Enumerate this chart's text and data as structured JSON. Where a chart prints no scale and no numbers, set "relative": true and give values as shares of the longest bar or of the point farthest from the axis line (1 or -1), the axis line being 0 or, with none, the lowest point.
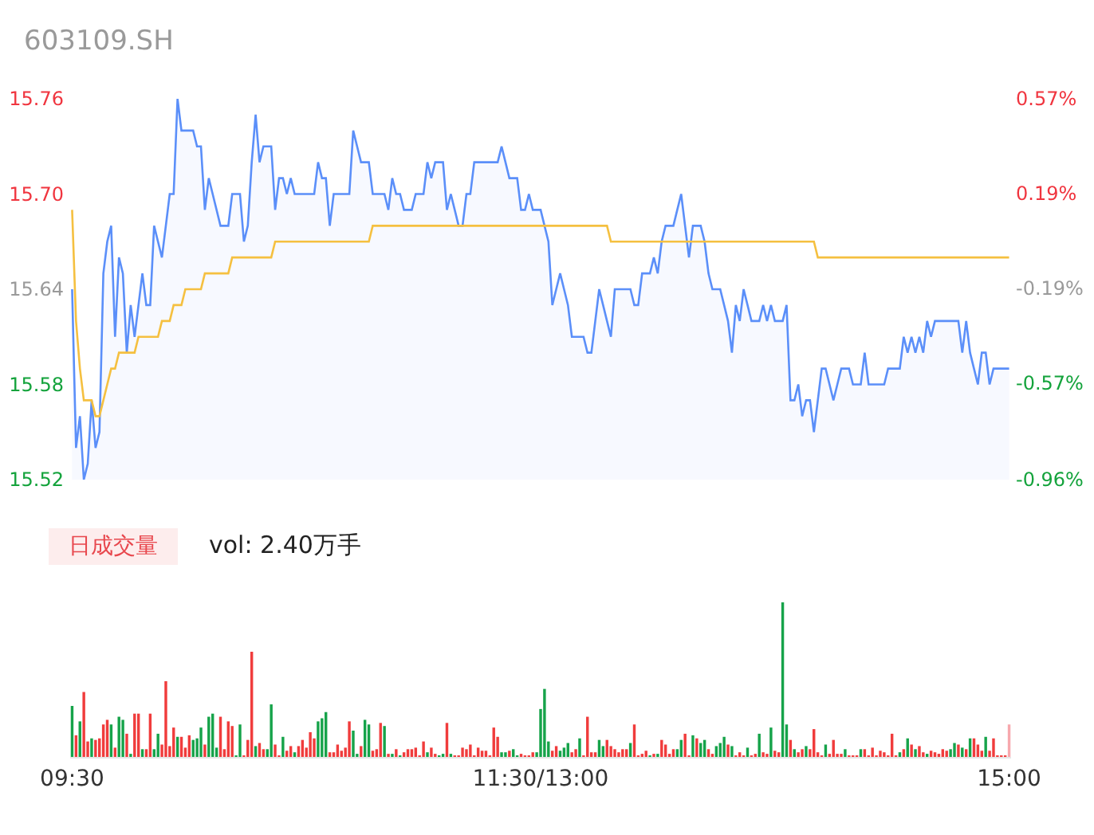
{
  "chart_data": [
    {
      "type": "line",
      "title": "603109.SH",
      "categories": [
        null,
        null,
        null,
        null,
        null,
        null,
        null,
        null,
        null,
        null,
        null,
        null,
        null,
        null,
        null,
        null,
        null,
        null,
        null,
        null,
        null,
        null,
        null,
        null,
        null,
        null,
        null,
        null,
        null,
        null,
        null,
        null,
        null,
        null,
        null,
        null,
        null,
        null,
        null,
        null,
        null,
        null,
        null,
        null,
        null,
        null,
        null,
        null,
        null,
        null,
        null,
        null,
        null,
        null,
        null,
        null,
        null,
        null,
        null,
        null,
        null,
        null,
        null,
        null,
        null,
        null,
        null,
        null,
        null,
        null,
        null,
        null,
        null,
        null,
        null,
        null,
        null,
        null,
        null,
        null,
        null,
        null,
        null,
        null,
        null,
        null,
        null,
        null,
        null,
        null,
        null,
        null,
        null,
        null,
        null,
        null,
        null,
        null,
        null,
        null,
        null,
        null,
        null,
        null,
        null,
        null,
        null,
        null,
        null,
        null,
        null,
        null,
        null,
        null,
        null,
        null,
        null,
        null,
        null,
        null,
        null,
        null,
        null,
        null,
        null,
        null,
        null,
        null,
        null,
        null,
        null,
        null,
        null,
        null,
        null,
        null,
        null,
        null,
        null,
        null,
        null,
        null,
        null,
        null,
        null,
        null,
        null,
        null,
        null,
        null,
        null,
        null,
        null,
        null,
        null,
        null,
        null,
        null,
        null,
        null,
        null,
        null,
        null,
        null,
        null,
        null,
        null,
        null,
        null,
        null,
        null,
        null,
        null,
        null,
        null,
        null,
        null,
        null,
        null,
        null,
        null,
        null,
        null,
        null,
        null,
        null,
        null,
        null,
        null,
        null,
        null,
        null,
        null,
        null,
        null,
        null,
        null,
        null,
        null,
        null,
        null,
        null,
        null,
        null,
        null,
        null,
        null,
        null,
        null,
        null,
        null,
        null,
        null,
        null,
        null,
        null,
        null,
        null,
        null,
        null,
        null,
        null,
        null,
        null,
        null,
        null,
        null,
        null,
        null,
        null,
        null,
        null,
        null,
        null,
        null,
        null,
        null,
        null,
        null,
        null,
        null
      ],
      "ylim": [
        15.52,
        15.76
      ],
      "yticks": [
        {
          "value": 15.52,
          "label": "15.52"
        },
        {
          "value": 15.58,
          "label": "15.58"
        },
        {
          "value": 15.64,
          "label": "15.64"
        },
        {
          "value": 15.7,
          "label": "15.70"
        },
        {
          "value": 15.76,
          "label": "15.76"
        }
      ],
      "y2lim": [
        -0.96,
        0.57
      ],
      "y2ticks": [
        {
          "value": -0.96,
          "label": "-0.96%"
        },
        {
          "value": -0.57,
          "label": "-0.57%"
        },
        {
          "value": -0.19,
          "label": "-0.19%"
        },
        {
          "value": 0.19,
          "label": "0.19%"
        },
        {
          "value": 0.57,
          "label": "0.57%"
        }
      ],
      "tick_labels": "y",
      "series": [
        {
          "type": "area",
          "color": "#5b8ff9",
          "values": [
            15.64,
            15.54,
            15.56,
            15.52,
            15.53,
            15.57,
            15.54,
            15.55,
            15.65,
            15.67,
            15.68,
            15.61,
            15.66,
            15.65,
            15.6,
            15.63,
            15.61,
            15.63,
            15.65,
            15.63,
            15.63,
            15.68,
            15.67,
            15.66,
            15.68,
            15.7,
            15.7,
            15.76,
            15.74,
            15.74,
            15.74,
            15.74,
            15.73,
            15.73,
            15.69,
            15.71,
            15.7,
            15.69,
            15.68,
            15.68,
            15.68,
            15.7,
            15.7,
            15.7,
            15.67,
            15.68,
            15.72,
            15.75,
            15.72,
            15.73,
            15.73,
            15.73,
            15.69,
            15.71,
            15.71,
            15.7,
            15.71,
            15.7,
            15.7,
            15.7,
            15.7,
            15.7,
            15.7,
            15.72,
            15.71,
            15.71,
            15.68,
            15.7,
            15.7,
            15.7,
            15.7,
            15.7,
            15.74,
            15.73,
            15.72,
            15.72,
            15.72,
            15.7,
            15.7,
            15.7,
            15.7,
            15.69,
            15.71,
            15.7,
            15.7,
            15.69,
            15.69,
            15.69,
            15.7,
            15.7,
            15.7,
            15.72,
            15.71,
            15.72,
            15.72,
            15.72,
            15.69,
            15.7,
            15.69,
            15.68,
            15.68,
            15.7,
            15.7,
            15.72,
            15.72,
            15.72,
            15.72,
            15.72,
            15.72,
            15.72,
            15.73,
            15.72,
            15.71,
            15.71,
            15.71,
            15.69,
            15.69,
            15.7,
            15.69,
            15.69,
            15.69,
            15.68,
            15.67,
            15.63,
            15.64,
            15.65,
            15.64,
            15.63,
            15.61,
            15.61,
            15.61,
            15.61,
            15.6,
            15.6,
            15.62,
            15.64,
            15.63,
            15.62,
            15.61,
            15.64,
            15.64,
            15.64,
            15.64,
            15.64,
            15.63,
            15.63,
            15.65,
            15.65,
            15.65,
            15.66,
            15.65,
            15.67,
            15.68,
            15.68,
            15.68,
            15.69,
            15.7,
            15.68,
            15.66,
            15.68,
            15.68,
            15.68,
            15.67,
            15.65,
            15.64,
            15.64,
            15.64,
            15.63,
            15.62,
            15.6,
            15.63,
            15.62,
            15.64,
            15.63,
            15.62,
            15.62,
            15.62,
            15.63,
            15.62,
            15.63,
            15.62,
            15.62,
            15.62,
            15.63,
            15.57,
            15.57,
            15.58,
            15.56,
            15.57,
            15.57,
            15.55,
            15.57,
            15.59,
            15.59,
            15.58,
            15.57,
            15.58,
            15.59,
            15.59,
            15.59,
            15.58,
            15.58,
            15.58,
            15.6,
            15.58,
            15.58,
            15.58,
            15.58,
            15.58,
            15.59,
            15.59,
            15.59,
            15.59,
            15.61,
            15.6,
            15.61,
            15.6,
            15.61,
            15.6,
            15.62,
            15.61,
            15.62,
            15.62,
            15.62,
            15.62,
            15.62,
            15.62,
            15.62,
            15.6,
            15.62,
            15.6,
            15.59,
            15.58,
            15.6,
            15.6,
            15.58,
            15.59,
            15.59,
            15.59,
            15.59,
            15.59
          ]
        },
        {
          "color": "#f5c040",
          "values": [
            15.69,
            15.62,
            15.59,
            15.57,
            15.57,
            15.57,
            15.56,
            15.56,
            15.57,
            15.58,
            15.59,
            15.59,
            15.6,
            15.6,
            15.6,
            15.6,
            15.6,
            15.61,
            15.61,
            15.61,
            15.61,
            15.61,
            15.61,
            15.62,
            15.62,
            15.62,
            15.63,
            15.63,
            15.63,
            15.64,
            15.64,
            15.64,
            15.64,
            15.64,
            15.65,
            15.65,
            15.65,
            15.65,
            15.65,
            15.65,
            15.65,
            15.66,
            15.66,
            15.66,
            15.66,
            15.66,
            15.66,
            15.66,
            15.66,
            15.66,
            15.66,
            15.66,
            15.67,
            15.67,
            15.67,
            15.67,
            15.67,
            15.67,
            15.67,
            15.67,
            15.67,
            15.67,
            15.67,
            15.67,
            15.67,
            15.67,
            15.67,
            15.67,
            15.67,
            15.67,
            15.67,
            15.67,
            15.67,
            15.67,
            15.67,
            15.67,
            15.67,
            15.68,
            15.68,
            15.68,
            15.68,
            15.68,
            15.68,
            15.68,
            15.68,
            15.68,
            15.68,
            15.68,
            15.68,
            15.68,
            15.68,
            15.68,
            15.68,
            15.68,
            15.68,
            15.68,
            15.68,
            15.68,
            15.68,
            15.68,
            15.68,
            15.68,
            15.68,
            15.68,
            15.68,
            15.68,
            15.68,
            15.68,
            15.68,
            15.68,
            15.68,
            15.68,
            15.68,
            15.68,
            15.68,
            15.68,
            15.68,
            15.68,
            15.68,
            15.68,
            15.68,
            15.68,
            15.68,
            15.68,
            15.68,
            15.68,
            15.68,
            15.68,
            15.68,
            15.68,
            15.68,
            15.68,
            15.68,
            15.68,
            15.68,
            15.68,
            15.68,
            15.68,
            15.67,
            15.67,
            15.67,
            15.67,
            15.67,
            15.67,
            15.67,
            15.67,
            15.67,
            15.67,
            15.67,
            15.67,
            15.67,
            15.67,
            15.67,
            15.67,
            15.67,
            15.67,
            15.67,
            15.67,
            15.67,
            15.67,
            15.67,
            15.67,
            15.67,
            15.67,
            15.67,
            15.67,
            15.67,
            15.67,
            15.67,
            15.67,
            15.67,
            15.67,
            15.67,
            15.67,
            15.67,
            15.67,
            15.67,
            15.67,
            15.67,
            15.67,
            15.67,
            15.67,
            15.67,
            15.67,
            15.67,
            15.67,
            15.67,
            15.67,
            15.67,
            15.67,
            15.67,
            15.66,
            15.66,
            15.66,
            15.66,
            15.66,
            15.66,
            15.66,
            15.66,
            15.66,
            15.66,
            15.66,
            15.66,
            15.66,
            15.66,
            15.66,
            15.66,
            15.66,
            15.66,
            15.66,
            15.66,
            15.66,
            15.66,
            15.66,
            15.66,
            15.66,
            15.66,
            15.66,
            15.66,
            15.66,
            15.66,
            15.66,
            15.66,
            15.66,
            15.66,
            15.66,
            15.66,
            15.66,
            15.66,
            15.66,
            15.66,
            15.66,
            15.66,
            15.66,
            15.66,
            15.66,
            15.66,
            15.66,
            15.66,
            15.66,
            15.66
          ]
        }
      ]
    },
    {
      "type": "bar",
      "title": "日成交量",
      "annotations": [
        "vol: 2.40万手"
      ],
      "relative": true,
      "categories": [
        "09:30",
        null,
        null,
        null,
        null,
        null,
        null,
        null,
        null,
        null,
        null,
        null,
        null,
        null,
        null,
        null,
        null,
        null,
        null,
        null,
        null,
        null,
        null,
        null,
        null,
        null,
        null,
        null,
        null,
        null,
        null,
        null,
        null,
        null,
        null,
        null,
        null,
        null,
        null,
        null,
        null,
        null,
        null,
        null,
        null,
        null,
        null,
        null,
        null,
        null,
        null,
        null,
        null,
        null,
        null,
        null,
        null,
        null,
        null,
        null,
        null,
        null,
        null,
        null,
        null,
        null,
        null,
        null,
        null,
        null,
        null,
        null,
        null,
        null,
        null,
        null,
        null,
        null,
        null,
        null,
        null,
        null,
        null,
        null,
        null,
        null,
        null,
        null,
        null,
        null,
        null,
        null,
        null,
        null,
        null,
        null,
        null,
        null,
        null,
        null,
        null,
        null,
        null,
        null,
        null,
        null,
        null,
        null,
        null,
        null,
        null,
        null,
        null,
        null,
        null,
        null,
        null,
        null,
        null,
        null,
        "11:30/13:00",
        null,
        null,
        null,
        null,
        null,
        null,
        null,
        null,
        null,
        null,
        null,
        null,
        null,
        null,
        null,
        null,
        null,
        null,
        null,
        null,
        null,
        null,
        null,
        null,
        null,
        null,
        null,
        null,
        null,
        null,
        null,
        null,
        null,
        null,
        null,
        null,
        null,
        null,
        null,
        null,
        null,
        null,
        null,
        null,
        null,
        null,
        null,
        null,
        null,
        null,
        null,
        null,
        null,
        null,
        null,
        null,
        null,
        null,
        null,
        null,
        null,
        null,
        null,
        null,
        null,
        null,
        null,
        null,
        null,
        null,
        null,
        null,
        null,
        null,
        null,
        null,
        null,
        null,
        null,
        null,
        null,
        null,
        null,
        null,
        null,
        null,
        null,
        null,
        null,
        null,
        null,
        null,
        null,
        null,
        null,
        null,
        null,
        null,
        null,
        null,
        null,
        null,
        null,
        null,
        null,
        null,
        null,
        null,
        null,
        null,
        null,
        null,
        null,
        null,
        null,
        null,
        null,
        null,
        null,
        "15:00"
      ],
      "tick_labels": "x",
      "values": [
        0.33,
        0.14,
        0.23,
        0.42,
        0.1,
        0.12,
        0.11,
        0.12,
        0.21,
        0.24,
        0.21,
        0.06,
        0.26,
        0.24,
        0.15,
        0.02,
        0.28,
        0.28,
        0.05,
        0.05,
        0.28,
        0.05,
        0.15,
        0.08,
        0.49,
        0.07,
        0.19,
        0.13,
        0.13,
        0.06,
        0.14,
        0.11,
        0.12,
        0.19,
        0.08,
        0.26,
        0.28,
        0.06,
        0.26,
        0.05,
        0.23,
        0.2,
        0.01,
        0.21,
        0.01,
        0.11,
        0.68,
        0.07,
        0.09,
        0.05,
        0.05,
        0.34,
        0.08,
        0.01,
        0.13,
        0.04,
        0.07,
        0.03,
        0.07,
        0.11,
        0.06,
        0.16,
        0.12,
        0.23,
        0.25,
        0.29,
        0.03,
        0.03,
        0.08,
        0.04,
        0.06,
        0.23,
        0.17,
        0.02,
        0.07,
        0.24,
        0.21,
        0.04,
        0.05,
        0.22,
        0.2,
        0.02,
        0.02,
        0.05,
        0.01,
        0.03,
        0.05,
        0.05,
        0.06,
        0.01,
        0.1,
        0.03,
        0.06,
        0.02,
        0.01,
        0.02,
        0.22,
        0.02,
        0.01,
        0.01,
        0.06,
        0.05,
        0.08,
        0.01,
        0.06,
        0.04,
        0.04,
        0.01,
        0.19,
        0.13,
        0.03,
        0.03,
        0.04,
        0.05,
        0.01,
        0.02,
        0.01,
        0.01,
        0.03,
        0.03,
        0.31,
        0.44,
        0.1,
        0.04,
        0.07,
        0.04,
        0.06,
        0.09,
        0.03,
        0.05,
        0.12,
        0.01,
        0.26,
        0.03,
        0.03,
        0.11,
        0.07,
        0.11,
        0.07,
        0.05,
        0.03,
        0.05,
        0.05,
        0.09,
        0.21,
        0.01,
        0.02,
        0.04,
        0.01,
        0.02,
        0.02,
        0.11,
        0.08,
        0.02,
        0.05,
        0.05,
        0.11,
        0.15,
        0.01,
        0.14,
        0.12,
        0.09,
        0.11,
        0.05,
        0.02,
        0.07,
        0.09,
        0.13,
        0.08,
        0.07,
        0.01,
        0.03,
        0.01,
        0.06,
        0.01,
        0.02,
        0.15,
        0.03,
        0.02,
        0.19,
        0.04,
        0.03,
        1,
        0.21,
        0.11,
        0.05,
        0.03,
        0.05,
        0.07,
        0.05,
        0.18,
        0.03,
        0.01,
        0.08,
        0.02,
        0.11,
        0.02,
        0.02,
        0.05,
        0.01,
        0.01,
        0.01,
        0.05,
        0.05,
        0.01,
        0.06,
        0.01,
        0.04,
        0.03,
        0.01,
        0.15,
        0.01,
        0.03,
        0.05,
        0.12,
        0.08,
        0.05,
        0.07,
        0.03,
        0.02,
        0.04,
        0.03,
        0.02,
        0.05,
        0.04,
        0.05,
        0.09,
        0.08,
        0.06,
        0.05,
        0.12,
        0.12,
        0.08,
        0.04,
        0.13,
        0.04,
        0.12,
        0.01,
        0.01,
        0.01,
        0.21
      ],
      "colors": [
        "#16a34a",
        "#f03c3c",
        "#16a34a",
        "#f03c3c",
        "#f03c3c",
        "#16a34a",
        "#f03c3c",
        "#f03c3c",
        "#f03c3c",
        "#f03c3c",
        "#16a34a",
        "#f03c3c",
        "#16a34a",
        "#16a34a",
        "#f03c3c",
        "#16a34a",
        "#f03c3c",
        "#f03c3c",
        "#16a34a",
        "#f03c3c",
        "#f03c3c",
        "#16a34a",
        "#16a34a",
        "#f03c3c",
        "#f03c3c",
        "#f03c3c",
        "#f03c3c",
        "#16a34a",
        "#f03c3c",
        "#f03c3c",
        "#f03c3c",
        "#16a34a",
        "#16a34a",
        "#16a34a",
        "#f03c3c",
        "#16a34a",
        "#16a34a",
        "#16a34a",
        "#f03c3c",
        "#f03c3c",
        "#f03c3c",
        "#f03c3c",
        "#16a34a",
        "#16a34a",
        "#f03c3c",
        "#f03c3c",
        "#f03c3c",
        "#16a34a",
        "#f03c3c",
        "#f03c3c",
        "#16a34a",
        "#16a34a",
        "#f03c3c",
        "#f03c3c",
        "#16a34a",
        "#f03c3c",
        "#f03c3c",
        "#16a34a",
        "#f03c3c",
        "#f03c3c",
        "#f03c3c",
        "#f03c3c",
        "#f03c3c",
        "#16a34a",
        "#16a34a",
        "#16a34a",
        "#f03c3c",
        "#f03c3c",
        "#f03c3c",
        "#f03c3c",
        "#f03c3c",
        "#f03c3c",
        "#16a34a",
        "#16a34a",
        "#f03c3c",
        "#16a34a",
        "#16a34a",
        "#f03c3c",
        "#f03c3c",
        "#f03c3c",
        "#16a34a",
        "#f03c3c",
        "#16a34a",
        "#f03c3c",
        "#16a34a",
        "#f03c3c",
        "#f03c3c",
        "#f03c3c",
        "#f03c3c",
        "#f03c3c",
        "#f03c3c",
        "#16a34a",
        "#f03c3c",
        "#f03c3c",
        "#16a34a",
        "#16a34a",
        "#f03c3c",
        "#16a34a",
        "#f03c3c",
        "#f03c3c",
        "#f03c3c",
        "#f03c3c",
        "#f03c3c",
        "#f03c3c",
        "#f03c3c",
        "#f03c3c",
        "#f03c3c",
        "#f03c3c",
        "#f03c3c",
        "#f03c3c",
        "#16a34a",
        "#16a34a",
        "#f03c3c",
        "#16a34a",
        "#16a34a",
        "#f03c3c",
        "#f03c3c",
        "#f03c3c",
        "#f03c3c",
        "#16a34a",
        "#16a34a",
        "#16a34a",
        "#16a34a",
        "#f03c3c",
        "#f03c3c",
        "#16a34a",
        "#16a34a",
        "#16a34a",
        "#f03c3c",
        "#f03c3c",
        "#16a34a",
        "#f03c3c",
        "#f03c3c",
        "#f03c3c",
        "#f03c3c",
        "#16a34a",
        "#16a34a",
        "#f03c3c",
        "#f03c3c",
        "#f03c3c",
        "#f03c3c",
        "#f03c3c",
        "#f03c3c",
        "#16a34a",
        "#f03c3c",
        "#f03c3c",
        "#f03c3c",
        "#f03c3c",
        "#16a34a",
        "#f03c3c",
        "#16a34a",
        "#f03c3c",
        "#f03c3c",
        "#f03c3c",
        "#f03c3c",
        "#16a34a",
        "#16a34a",
        "#f03c3c",
        "#f03c3c",
        "#16a34a",
        "#f03c3c",
        "#16a34a",
        "#16a34a",
        "#f03c3c",
        "#f03c3c",
        "#16a34a",
        "#16a34a",
        "#16a34a",
        "#f03c3c",
        "#16a34a",
        "#f03c3c",
        "#f03c3c",
        "#f03c3c",
        "#16a34a",
        "#f03c3c",
        "#f03c3c",
        "#16a34a",
        "#f03c3c",
        "#f03c3c",
        "#16a34a",
        "#f03c3c",
        "#f03c3c",
        "#16a34a",
        "#16a34a",
        "#f03c3c",
        "#16a34a",
        "#f03c3c",
        "#f03c3c",
        "#16a34a",
        "#f03c3c",
        "#f03c3c",
        "#f03c3c",
        "#f03c3c",
        "#16a34a",
        "#f03c3c",
        "#f03c3c",
        "#f03c3c",
        "#f03c3c",
        "#16a34a",
        "#f03c3c",
        "#f03c3c",
        "#f03c3c",
        "#16a34a",
        "#f03c3c",
        "#f03c3c",
        "#f03c3c",
        "#f03c3c",
        "#f03c3c",
        "#f03c3c",
        "#f03c3c",
        "#f03c3c",
        "#f03c3c",
        "#16a34a",
        "#f03c3c",
        "#16a34a",
        "#f03c3c",
        "#16a34a",
        "#f03c3c",
        "#f03c3c",
        "#16a34a",
        "#f03c3c",
        "#f03c3c",
        "#f03c3c",
        "#f03c3c",
        "#f03c3c",
        "#16a34a",
        "#16a34a",
        "#f03c3c",
        "#16a34a",
        "#f03c3c",
        "#16a34a",
        "#f03c3c",
        "#f03c3c",
        "#f03c3c",
        "#16a34a",
        "#f03c3c",
        "#f03c3c",
        "#f03c3c",
        "#f03c3c",
        "#f03c3c",
        "#f7a8ad"
      ]
    }
  ]
}
